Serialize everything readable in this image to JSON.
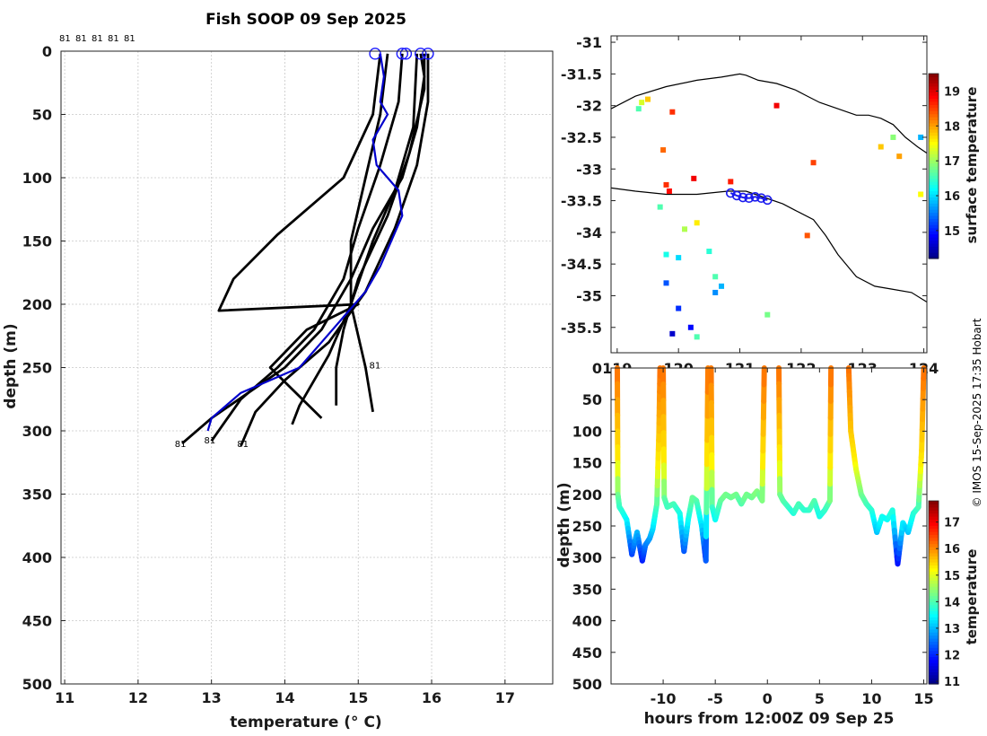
{
  "credit": "© IMOS 15-Sep-2025 17:35 Hobart",
  "chart_data": [
    {
      "id": "profiles",
      "type": "line",
      "title": "Fish SOOP 09 Sep 2025",
      "xlabel": "temperature (° C)",
      "ylabel": "depth (m)",
      "xlim": [
        10.95,
        17.65
      ],
      "ylim": [
        500,
        0
      ],
      "xticks": [
        11,
        12,
        13,
        14,
        15,
        16,
        17
      ],
      "yticks": [
        0,
        50,
        100,
        150,
        200,
        250,
        300,
        350,
        400,
        450,
        500
      ],
      "grid": true,
      "top_labels": [
        "81",
        "81",
        "81",
        "81",
        "81"
      ],
      "series": [
        {
          "name": "cast 1",
          "color": "#000000",
          "x": [
            15.85,
            15.9,
            15.8,
            15.6,
            15.2,
            14.9,
            14.5,
            14.0,
            13.5,
            13.0,
            12.6
          ],
          "y": [
            2,
            20,
            60,
            100,
            140,
            180,
            220,
            250,
            270,
            290,
            310
          ]
        },
        {
          "name": "cast 2",
          "color": "#000000",
          "x": [
            15.6,
            15.55,
            15.3,
            15.0,
            14.8,
            14.4,
            13.9,
            13.4,
            13.0
          ],
          "y": [
            2,
            40,
            90,
            140,
            180,
            220,
            250,
            275,
            308
          ]
        },
        {
          "name": "cast 3",
          "color": "#000000",
          "x": [
            15.95,
            15.95,
            15.8,
            15.5,
            15.1,
            14.6,
            14.0,
            13.6,
            13.4
          ],
          "y": [
            2,
            40,
            90,
            140,
            190,
            230,
            260,
            285,
            312
          ]
        },
        {
          "name": "cast 4",
          "color": "#000000",
          "x": [
            15.3,
            15.2,
            14.8,
            14.2,
            13.9,
            13.3,
            13.1,
            15.0,
            14.3,
            13.8,
            14.5
          ],
          "y": [
            2,
            50,
            100,
            130,
            145,
            180,
            205,
            200,
            220,
            250,
            290
          ]
        },
        {
          "name": "cast 5",
          "color": "#000000",
          "x": [
            15.9,
            15.9,
            15.7,
            15.4,
            15.0,
            14.8,
            14.7,
            14.7
          ],
          "y": [
            2,
            30,
            80,
            130,
            180,
            220,
            250,
            280
          ]
        },
        {
          "name": "cast 6",
          "color": "#000000",
          "x": [
            15.4,
            15.3,
            15.1,
            14.9,
            14.9,
            15.1,
            15.2
          ],
          "y": [
            2,
            50,
            100,
            150,
            200,
            250,
            285
          ]
        },
        {
          "name": "cast 7",
          "color": "#000000",
          "x": [
            15.8,
            15.75,
            15.5,
            15.2,
            14.9,
            14.6,
            14.4,
            14.2,
            14.1
          ],
          "y": [
            2,
            60,
            110,
            150,
            200,
            240,
            260,
            280,
            295
          ]
        },
        {
          "name": "mean",
          "color": "#0000cc",
          "x": [
            15.3,
            15.35,
            15.3,
            15.4,
            15.2,
            15.25,
            15.55,
            15.6,
            15.45,
            15.3,
            15.1,
            14.8,
            14.5,
            14.2,
            13.8,
            13.4,
            13.0,
            12.95
          ],
          "y": [
            2,
            20,
            40,
            50,
            70,
            90,
            110,
            130,
            150,
            170,
            190,
            210,
            230,
            250,
            260,
            270,
            290,
            300
          ]
        }
      ],
      "markers": [
        {
          "x": 15.23,
          "y": 2
        },
        {
          "x": 15.6,
          "y": 2
        },
        {
          "x": 15.65,
          "y": 2
        },
        {
          "x": 15.85,
          "y": 2
        },
        {
          "x": 15.95,
          "y": 2
        }
      ],
      "annotations": [
        {
          "text": "81",
          "x": 15.15,
          "y": 248
        },
        {
          "text": "81",
          "x": 12.5,
          "y": 310
        },
        {
          "text": "81",
          "x": 12.9,
          "y": 307
        },
        {
          "text": "81",
          "x": 13.35,
          "y": 310
        }
      ]
    },
    {
      "id": "map",
      "type": "scatter",
      "colorbar_label": "surface temperature",
      "xlim": [
        118.9,
        124.05
      ],
      "ylim": [
        -35.9,
        -30.9
      ],
      "xticks": [
        119,
        120,
        121,
        122,
        123,
        124
      ],
      "xtick_labels": [
        "119",
        "120",
        "121",
        "122",
        "123",
        "124"
      ],
      "yticks": [
        -31,
        -31.5,
        -32,
        -32.5,
        -33,
        -33.5,
        -34,
        -34.5,
        -35,
        -35.5
      ],
      "ytick_labels": [
        "-31",
        "-31.5",
        "-32",
        "-32.5",
        "-33",
        "-33.5",
        "-34",
        "-34.5",
        "-35",
        "-35.5"
      ],
      "clim": [
        14.2,
        19.5
      ],
      "cticks": [
        15,
        16,
        17,
        18,
        19
      ],
      "coast_north": {
        "lon": [
          118.9,
          119.3,
          119.8,
          120.3,
          120.7,
          121.0,
          121.1,
          121.3,
          121.6,
          121.9,
          122.1,
          122.3,
          122.6,
          122.9,
          123.1,
          123.3,
          123.5,
          123.7,
          123.9,
          124.05
        ],
        "lat": [
          -32.05,
          -31.85,
          -31.7,
          -31.6,
          -31.55,
          -31.5,
          -31.52,
          -31.6,
          -31.65,
          -31.75,
          -31.85,
          -31.95,
          -32.05,
          -32.15,
          -32.15,
          -32.2,
          -32.3,
          -32.5,
          -32.65,
          -32.75
        ]
      },
      "coast_south": {
        "lon": [
          118.9,
          119.3,
          119.8,
          120.3,
          120.8,
          121.1,
          121.4,
          121.7,
          121.9,
          122.2,
          122.4,
          122.6,
          122.9,
          123.2,
          123.5,
          123.8,
          124.05
        ],
        "lat": [
          -33.3,
          -33.35,
          -33.4,
          -33.4,
          -33.35,
          -33.35,
          -33.45,
          -33.55,
          -33.65,
          -33.8,
          -34.05,
          -34.35,
          -34.7,
          -34.85,
          -34.9,
          -34.95,
          -35.1
        ]
      },
      "track": {
        "lon": [
          120.85,
          120.95,
          121.05,
          121.15,
          121.25,
          121.35,
          121.45
        ],
        "lat": [
          -33.38,
          -33.42,
          -33.45,
          -33.46,
          -33.44,
          -33.46,
          -33.49
        ]
      },
      "points": [
        {
          "lon": 119.4,
          "lat": -31.95,
          "t": 17.3
        },
        {
          "lon": 119.5,
          "lat": -31.9,
          "t": 17.8
        },
        {
          "lon": 119.35,
          "lat": -32.05,
          "t": 16.6
        },
        {
          "lon": 119.9,
          "lat": -32.1,
          "t": 18.6
        },
        {
          "lon": 119.75,
          "lat": -32.7,
          "t": 18.3
        },
        {
          "lon": 119.8,
          "lat": -33.25,
          "t": 18.6
        },
        {
          "lon": 119.85,
          "lat": -33.35,
          "t": 18.8
        },
        {
          "lon": 120.25,
          "lat": -33.15,
          "t": 18.9
        },
        {
          "lon": 120.85,
          "lat": -33.2,
          "t": 18.7
        },
        {
          "lon": 119.7,
          "lat": -33.6,
          "t": 16.6
        },
        {
          "lon": 120.1,
          "lat": -33.95,
          "t": 17.1
        },
        {
          "lon": 120.3,
          "lat": -33.85,
          "t": 17.6
        },
        {
          "lon": 119.8,
          "lat": -34.35,
          "t": 16.3
        },
        {
          "lon": 120.0,
          "lat": -34.4,
          "t": 16.0
        },
        {
          "lon": 120.5,
          "lat": -34.3,
          "t": 16.4
        },
        {
          "lon": 120.6,
          "lat": -34.7,
          "t": 16.6
        },
        {
          "lon": 120.7,
          "lat": -34.85,
          "t": 15.8
        },
        {
          "lon": 120.6,
          "lat": -34.95,
          "t": 15.6
        },
        {
          "lon": 119.8,
          "lat": -34.8,
          "t": 15.3
        },
        {
          "lon": 120.0,
          "lat": -35.2,
          "t": 15.1
        },
        {
          "lon": 120.2,
          "lat": -35.5,
          "t": 14.9
        },
        {
          "lon": 119.9,
          "lat": -35.6,
          "t": 14.6
        },
        {
          "lon": 120.3,
          "lat": -35.65,
          "t": 16.6
        },
        {
          "lon": 121.45,
          "lat": -35.3,
          "t": 16.8
        },
        {
          "lon": 123.5,
          "lat": -32.5,
          "t": 16.9
        },
        {
          "lon": 123.3,
          "lat": -32.65,
          "t": 17.8
        },
        {
          "lon": 123.6,
          "lat": -32.8,
          "t": 18.0
        },
        {
          "lon": 123.95,
          "lat": -32.5,
          "t": 15.8
        },
        {
          "lon": 123.95,
          "lat": -33.4,
          "t": 17.5
        },
        {
          "lon": 122.1,
          "lat": -34.05,
          "t": 18.4
        },
        {
          "lon": 122.2,
          "lat": -32.9,
          "t": 18.5
        },
        {
          "lon": 121.6,
          "lat": -32.0,
          "t": 18.9
        }
      ]
    },
    {
      "id": "section",
      "type": "scatter",
      "xlabel": "hours from 12:00Z 09 Sep 25",
      "ylabel": "depth (m)",
      "colorbar_label": "temperature",
      "xlim": [
        -15,
        15.3
      ],
      "ylim": [
        500,
        0
      ],
      "xticks": [
        -10,
        -5,
        0,
        5,
        10,
        15
      ],
      "xtick_labels": [
        "-10",
        "-5",
        "0",
        "5",
        "10",
        "15"
      ],
      "yticks": [
        0,
        50,
        100,
        150,
        200,
        250,
        300,
        350,
        400,
        450,
        500
      ],
      "ytick_labels": [
        "0",
        "50",
        "100",
        "150",
        "200",
        "250",
        "300",
        "350",
        "400",
        "450",
        "500"
      ],
      "clim": [
        10.9,
        17.8
      ],
      "cticks": [
        11,
        12,
        13,
        14,
        15,
        16,
        17
      ],
      "traces": [
        {
          "x": [
            -14.4,
            -14.35,
            -14.2,
            -14.0,
            -13.5,
            -13.0,
            -12.5,
            -12.0,
            -11.7,
            -11.3,
            -11.0,
            -10.6,
            -10.4,
            -10.3
          ],
          "y": [
            0,
            200,
            220,
            225,
            240,
            295,
            260,
            305,
            280,
            270,
            255,
            215,
            100,
            0
          ]
        },
        {
          "x": [
            -10.0,
            -9.9,
            -9.6,
            -9.0,
            -8.4,
            -8.0,
            -7.6,
            -7.2,
            -6.8,
            -6.3,
            -5.9,
            -5.7
          ],
          "y": [
            0,
            205,
            220,
            215,
            230,
            290,
            240,
            205,
            210,
            250,
            305,
            0
          ]
        },
        {
          "x": [
            -5.4,
            -5.3,
            -5.0,
            -4.5,
            -4.0,
            -3.5,
            -3.0,
            -2.5,
            -2.0,
            -1.5,
            -1.0,
            -0.5,
            -0.3
          ],
          "y": [
            0,
            220,
            240,
            210,
            200,
            205,
            200,
            215,
            200,
            205,
            195,
            210,
            0
          ]
        },
        {
          "x": [
            1.1,
            1.2,
            1.5,
            2.0,
            2.5,
            3.0,
            3.5,
            4.0,
            4.5,
            5.0,
            5.5,
            6.0,
            6.1
          ],
          "y": [
            0,
            200,
            210,
            220,
            230,
            215,
            225,
            225,
            210,
            235,
            225,
            210,
            0
          ]
        },
        {
          "x": [
            7.8,
            8.0,
            8.5,
            9.0,
            9.5,
            10.0,
            10.5,
            11.0,
            11.5,
            12.0,
            12.5,
            13.0,
            13.5,
            14.0,
            14.5,
            14.8,
            15.0
          ],
          "y": [
            0,
            100,
            160,
            200,
            215,
            225,
            260,
            235,
            240,
            225,
            310,
            245,
            260,
            230,
            220,
            130,
            0
          ]
        }
      ]
    }
  ]
}
